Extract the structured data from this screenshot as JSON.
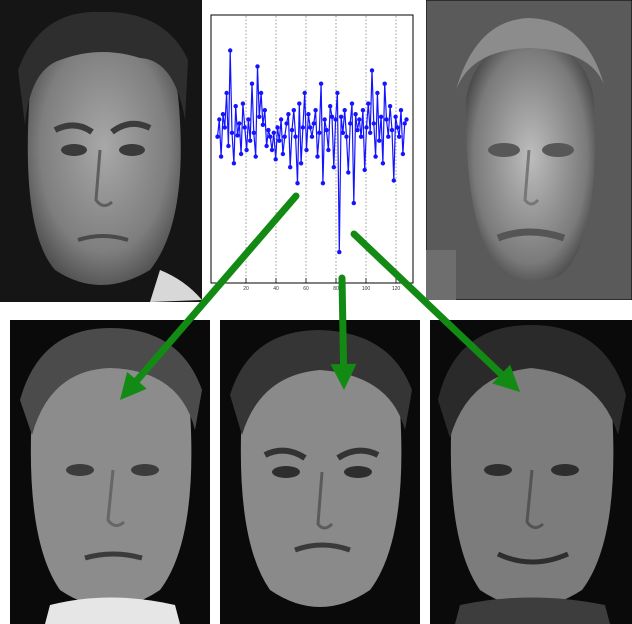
{
  "figure": {
    "panels": {
      "query_face": "Grayscale portrait of a short-haired man (query face)",
      "mean_face": "Blurred average-face reconstruction",
      "match_1": "Grayscale face crop, first retrieved match",
      "match_2": "Grayscale face crop, second retrieved match",
      "match_3": "Grayscale face crop, third retrieved match"
    },
    "colors": {
      "series": "#1414ff",
      "arrow": "#138a13",
      "background": "#ffffff",
      "axis": "#000000"
    }
  },
  "chart_data": {
    "type": "line",
    "title": "",
    "xlabel": "",
    "ylabel": "",
    "xlim": [
      0,
      128
    ],
    "ylim": [
      -1.0,
      0.9
    ],
    "xticks": [
      20,
      40,
      60,
      80,
      100,
      120
    ],
    "grid": "vertical dotted lines",
    "series": [
      {
        "values": [
          0.05,
          0.18,
          -0.1,
          0.22,
          0.12,
          0.38,
          -0.02,
          0.7,
          0.08,
          -0.15,
          0.28,
          0.06,
          0.15,
          -0.08,
          0.3,
          0.12,
          -0.05,
          0.18,
          0.02,
          0.45,
          0.08,
          -0.1,
          0.58,
          0.2,
          0.38,
          0.14,
          0.25,
          -0.02,
          0.1,
          0.05,
          -0.05,
          0.08,
          -0.12,
          0.12,
          0.02,
          0.18,
          -0.08,
          0.05,
          0.15,
          0.22,
          -0.18,
          0.1,
          0.25,
          0.05,
          -0.3,
          0.3,
          -0.15,
          0.12,
          0.38,
          -0.05,
          0.22,
          0.12,
          0.05,
          0.15,
          0.25,
          -0.1,
          0.08,
          0.45,
          -0.3,
          0.18,
          0.1,
          -0.05,
          0.28,
          0.2,
          -0.18,
          0.18,
          0.38,
          -0.82,
          0.2,
          0.08,
          0.25,
          0.05,
          -0.22,
          0.15,
          0.3,
          -0.45,
          0.22,
          0.1,
          0.18,
          0.05,
          0.25,
          -0.2,
          0.12,
          0.3,
          0.08,
          0.55,
          0.15,
          -0.1,
          0.38,
          0.02,
          0.2,
          -0.15,
          0.45,
          0.18,
          0.05,
          0.28,
          0.1,
          -0.28,
          0.2,
          0.12,
          0.05,
          0.25,
          -0.08,
          0.15,
          0.18
        ]
      }
    ]
  }
}
